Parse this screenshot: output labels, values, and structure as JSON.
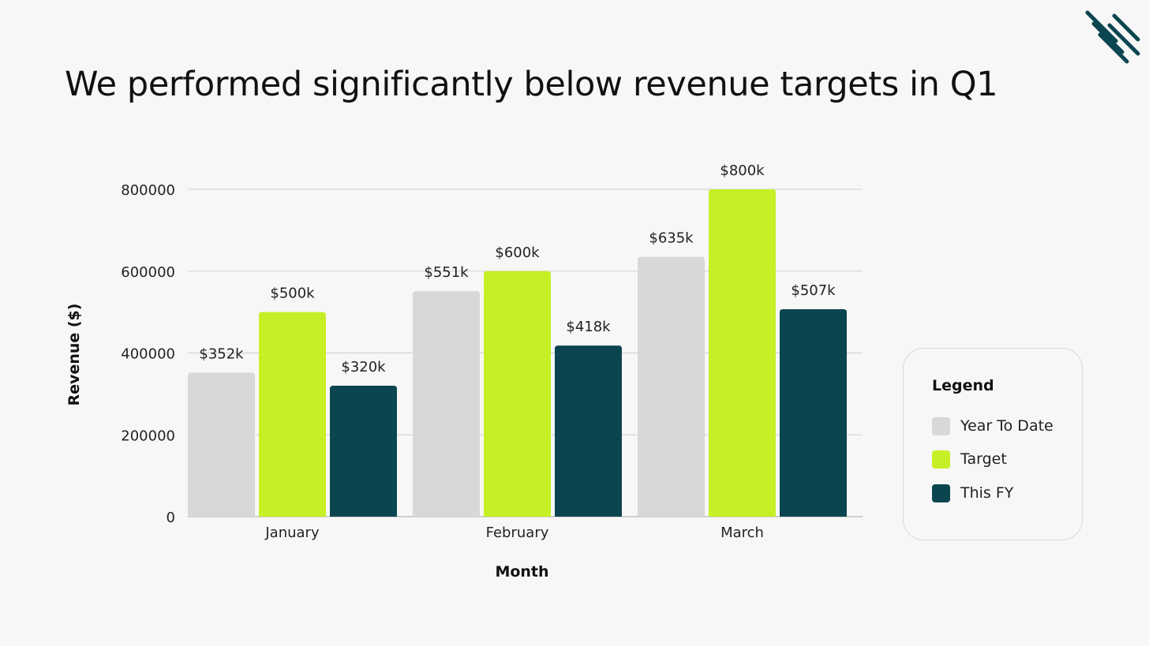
{
  "slide": {
    "title": "We performed significantly below revenue targets in Q1"
  },
  "logo": {
    "icon": "diagonal-stripes-logo-icon",
    "color": "#0b4650"
  },
  "colors": {
    "year_to_date": "#d8d8d8",
    "target": "#c6f025",
    "this_fy": "#0b4650",
    "grid": "#cfcfcf"
  },
  "legend": {
    "title": "Legend",
    "items": [
      {
        "label": "Year To Date",
        "color": "#d8d8d8"
      },
      {
        "label": "Target",
        "color": "#c6f025"
      },
      {
        "label": "This FY",
        "color": "#0b4650"
      }
    ]
  },
  "chart_data": {
    "type": "bar",
    "title": "We performed significantly below revenue targets in Q1",
    "xlabel": "Month",
    "ylabel": "Revenue ($)",
    "categories": [
      "January",
      "February",
      "March"
    ],
    "ylim": [
      0,
      800000
    ],
    "yticks": [
      0,
      200000,
      400000,
      600000,
      800000
    ],
    "ytick_labels": [
      "0",
      "200000",
      "400000",
      "600000",
      "800000"
    ],
    "grid": true,
    "legend_position": "right",
    "series": [
      {
        "name": "Year To Date",
        "color": "#d8d8d8",
        "values": [
          352000,
          551000,
          635000
        ],
        "labels": [
          "$352k",
          "$551k",
          "$635k"
        ]
      },
      {
        "name": "Target",
        "color": "#c6f025",
        "values": [
          500000,
          600000,
          800000
        ],
        "labels": [
          "$500k",
          "$600k",
          "$800k"
        ]
      },
      {
        "name": "This FY",
        "color": "#0b4650",
        "values": [
          320000,
          418000,
          507000
        ],
        "labels": [
          "$320k",
          "$418k",
          "$507k"
        ]
      }
    ]
  }
}
